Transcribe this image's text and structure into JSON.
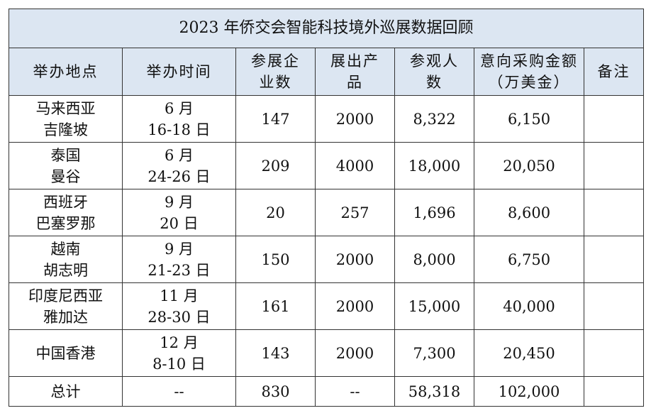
{
  "table": {
    "title": "2023 年侨交会智能科技境外巡展数据回顾",
    "headers": [
      [
        "举办地点"
      ],
      [
        "举办时间"
      ],
      [
        "参展企",
        "业数"
      ],
      [
        "展出产",
        "品"
      ],
      [
        "参观人",
        "数"
      ],
      [
        "意向采购金额",
        "（万美金）"
      ],
      [
        "备注"
      ]
    ],
    "rows": [
      {
        "location": [
          "马来西亚",
          "吉隆坡"
        ],
        "date": [
          "6 月",
          "16-18 日"
        ],
        "exhibitors": "147",
        "products": "2000",
        "visitors": "8,322",
        "purchase": "6,150",
        "note": ""
      },
      {
        "location": [
          "泰国",
          "曼谷"
        ],
        "date": [
          "6 月",
          "24-26 日"
        ],
        "exhibitors": "209",
        "products": "4000",
        "visitors": "18,000",
        "purchase": "20,050",
        "note": ""
      },
      {
        "location": [
          "西班牙",
          "巴塞罗那"
        ],
        "date": [
          "9 月",
          "20 日"
        ],
        "exhibitors": "20",
        "products": "257",
        "visitors": "1,696",
        "purchase": "8,600",
        "note": ""
      },
      {
        "location": [
          "越南",
          "胡志明"
        ],
        "date": [
          "9 月",
          "21-23 日"
        ],
        "exhibitors": "150",
        "products": "2000",
        "visitors": "8,000",
        "purchase": "6,750",
        "note": ""
      },
      {
        "location": [
          "印度尼西亚",
          "雅加达"
        ],
        "date": [
          "11 月",
          "28-30 日"
        ],
        "exhibitors": "161",
        "products": "2000",
        "visitors": "15,000",
        "purchase": "40,000",
        "note": ""
      },
      {
        "location": [
          "中国香港"
        ],
        "date": [
          "12 月",
          "8-10 日"
        ],
        "exhibitors": "143",
        "products": "2000",
        "visitors": "7,300",
        "purchase": "20,450",
        "note": ""
      }
    ],
    "total": {
      "label": "总计",
      "date": "--",
      "exhibitors": "830",
      "products": "--",
      "visitors": "58,318",
      "purchase": "102,000",
      "note": ""
    },
    "colors": {
      "header_bg": "#dce6f2",
      "border": "#333333"
    }
  }
}
